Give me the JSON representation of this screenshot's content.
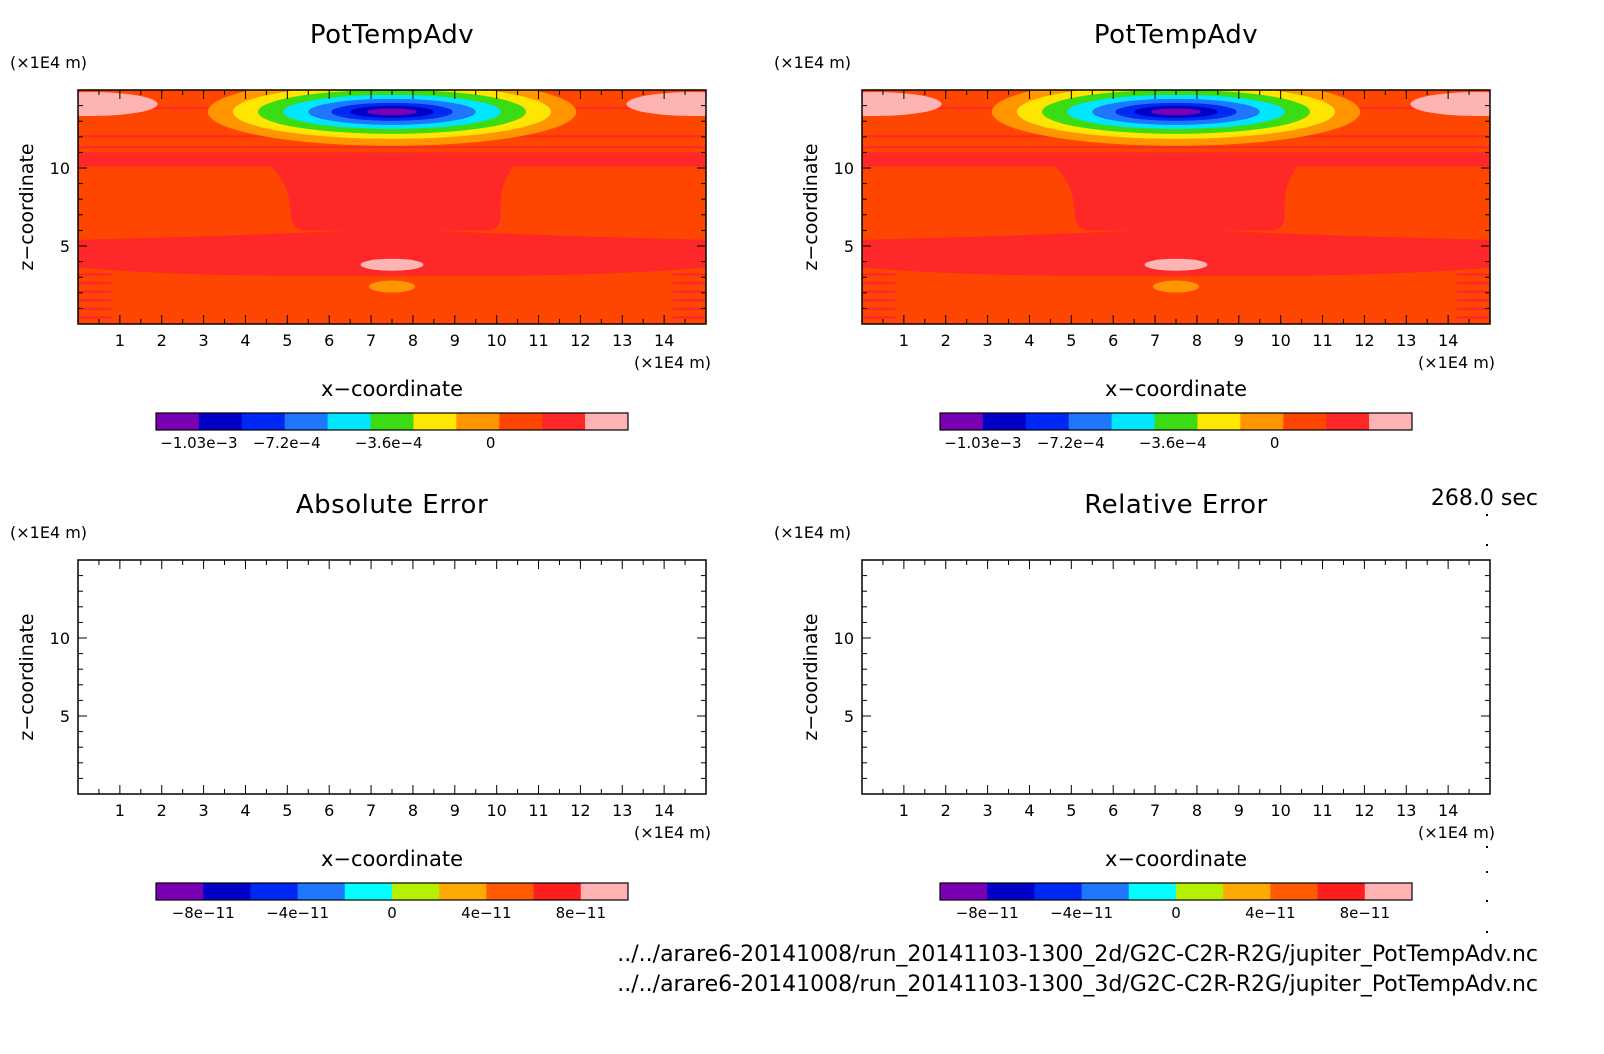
{
  "time_label": "268.0 sec",
  "files": [
    "../../arare6-20141008/run_20141103-1300_2d/G2C-C2R-R2G/jupiter_PotTempAdv.nc",
    "../../arare6-20141008/run_20141103-1300_3d/G2C-C2R-R2G/jupiter_PotTempAdv.nc"
  ],
  "panels": [
    {
      "title": "PotTempAdv",
      "y_unit": "(×1E4 m)",
      "x_unit": "(×1E4 m)",
      "xlabel": "x−coordinate",
      "ylabel": "z−coordinate",
      "xticks": [
        "1",
        "2",
        "3",
        "4",
        "5",
        "6",
        "7",
        "8",
        "9",
        "10",
        "11",
        "12",
        "13",
        "14"
      ],
      "yticks": [
        "5",
        "10"
      ],
      "colorbar_colors": [
        "#7a00b4",
        "#0000c8",
        "#0028f5",
        "#1e78ff",
        "#00e6ff",
        "#3cdc14",
        "#ffe600",
        "#ff9600",
        "#ff4600",
        "#ff2828",
        "#ffb4b4"
      ],
      "colorbar_labels": [
        "−1.03e−3",
        "−7.2e−4",
        "−3.6e−4",
        "0"
      ],
      "colorbar_levels": [
        -0.00103,
        -0.00072,
        -0.00036,
        0
      ]
    },
    {
      "title": "PotTempAdv",
      "y_unit": "(×1E4 m)",
      "x_unit": "(×1E4 m)",
      "xlabel": "x−coordinate",
      "ylabel": "z−coordinate",
      "xticks": [
        "1",
        "2",
        "3",
        "4",
        "5",
        "6",
        "7",
        "8",
        "9",
        "10",
        "11",
        "12",
        "13",
        "14"
      ],
      "yticks": [
        "5",
        "10"
      ],
      "colorbar_colors": [
        "#7a00b4",
        "#0000c8",
        "#0028f5",
        "#1e78ff",
        "#00e6ff",
        "#3cdc14",
        "#ffe600",
        "#ff9600",
        "#ff4600",
        "#ff2828",
        "#ffb4b4"
      ],
      "colorbar_labels": [
        "−1.03e−3",
        "−7.2e−4",
        "−3.6e−4",
        "0"
      ],
      "colorbar_levels": [
        -0.00103,
        -0.00072,
        -0.00036,
        0
      ]
    },
    {
      "title": "Absolute Error",
      "y_unit": "(×1E4 m)",
      "x_unit": "(×1E4 m)",
      "xlabel": "x−coordinate",
      "ylabel": "z−coordinate",
      "xticks": [
        "1",
        "2",
        "3",
        "4",
        "5",
        "6",
        "7",
        "8",
        "9",
        "10",
        "11",
        "12",
        "13",
        "14"
      ],
      "yticks": [
        "5",
        "10"
      ],
      "colorbar_colors": [
        "#7a00b4",
        "#0000c8",
        "#0028f5",
        "#1e78ff",
        "#00ffff",
        "#b4f000",
        "#ffaa00",
        "#ff5a00",
        "#ff1e1e",
        "#ffb4b4"
      ],
      "colorbar_labels": [
        "−8e−11",
        "−4e−11",
        "0",
        "4e−11",
        "8e−11"
      ],
      "colorbar_levels": [
        -8e-11,
        -4e-11,
        0,
        4e-11,
        8e-11
      ]
    },
    {
      "title": "Relative Error",
      "y_unit": "(×1E4 m)",
      "x_unit": "(×1E4 m)",
      "xlabel": "x−coordinate",
      "ylabel": "z−coordinate",
      "xticks": [
        "1",
        "2",
        "3",
        "4",
        "5",
        "6",
        "7",
        "8",
        "9",
        "10",
        "11",
        "12",
        "13",
        "14"
      ],
      "yticks": [
        "5",
        "10"
      ],
      "colorbar_colors": [
        "#7a00b4",
        "#0000c8",
        "#0028f5",
        "#1e78ff",
        "#00ffff",
        "#b4f000",
        "#ffaa00",
        "#ff5a00",
        "#ff1e1e",
        "#ffb4b4"
      ],
      "colorbar_labels": [
        "−8e−11",
        "−4e−11",
        "0",
        "4e−11",
        "8e−11"
      ],
      "colorbar_levels": [
        -8e-11,
        -4e-11,
        0,
        4e-11,
        8e-11
      ]
    }
  ],
  "chart_data": [
    {
      "type": "heatmap",
      "title": "PotTempAdv",
      "xlabel": "x−coordinate",
      "ylabel": "z−coordinate",
      "xlim": [
        0,
        15
      ],
      "ylim": [
        0,
        15
      ],
      "field": "filled contour of potential temperature advection; negative minimum about −1.03e−3 centered near x=7.5, z=13.5; values near 0 elsewhere with small positive maxima near top corners and near x=7.5, z=3.8",
      "features": [
        {
          "kind": "minimum",
          "x": 7.5,
          "z": 13.6,
          "value": -0.00103
        },
        {
          "kind": "maximum",
          "x": 0.8,
          "z": 14.0,
          "value": 0.0001
        },
        {
          "kind": "maximum",
          "x": 14.2,
          "z": 14.0,
          "value": 0.0001
        },
        {
          "kind": "maximum",
          "x": 7.5,
          "z": 3.8,
          "value": 0.0001
        },
        {
          "kind": "minimum",
          "x": 7.5,
          "z": 2.4,
          "value": -0.0001
        }
      ]
    },
    {
      "type": "heatmap",
      "title": "PotTempAdv",
      "xlabel": "x−coordinate",
      "ylabel": "z−coordinate",
      "xlim": [
        0,
        15
      ],
      "ylim": [
        0,
        15
      ],
      "field": "identical to first panel",
      "features": [
        {
          "kind": "minimum",
          "x": 7.5,
          "z": 13.6,
          "value": -0.00103
        },
        {
          "kind": "maximum",
          "x": 0.8,
          "z": 14.0,
          "value": 0.0001
        },
        {
          "kind": "maximum",
          "x": 14.2,
          "z": 14.0,
          "value": 0.0001
        },
        {
          "kind": "maximum",
          "x": 7.5,
          "z": 3.8,
          "value": 0.0001
        },
        {
          "kind": "minimum",
          "x": 7.5,
          "z": 2.4,
          "value": -0.0001
        }
      ]
    },
    {
      "type": "heatmap",
      "title": "Absolute Error",
      "xlabel": "x−coordinate",
      "ylabel": "z−coordinate",
      "xlim": [
        0,
        15
      ],
      "ylim": [
        0,
        15
      ],
      "field": "empty (no shading)",
      "features": []
    },
    {
      "type": "heatmap",
      "title": "Relative Error",
      "xlabel": "x−coordinate",
      "ylabel": "z−coordinate",
      "xlim": [
        0,
        15
      ],
      "ylim": [
        0,
        15
      ],
      "field": "empty (no shading)",
      "features": []
    }
  ]
}
